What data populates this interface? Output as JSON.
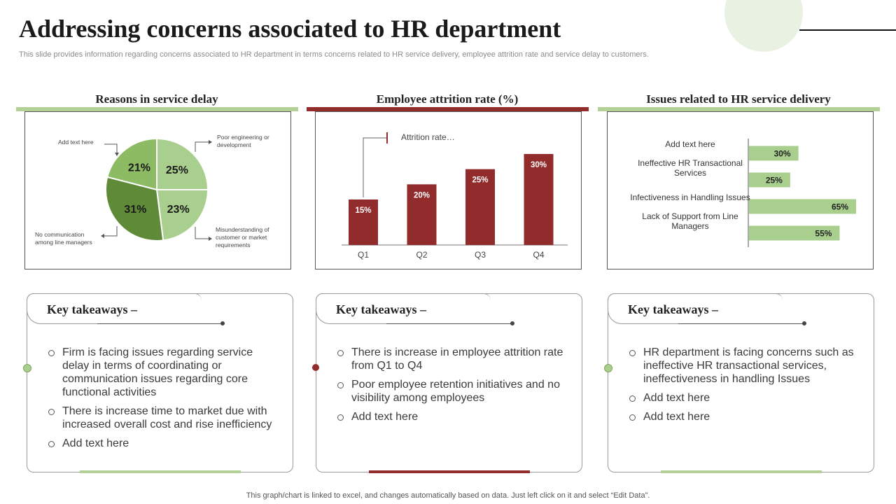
{
  "title": "Addressing concerns associated to HR department",
  "subtitle": "This slide provides information regarding concerns associated to HR department in terms concerns related to HR service delivery, employee attrition rate and service delay to customers.",
  "footnote": "This graph/chart is linked to excel, and changes automatically based on data. Just left click on it and select “Edit Data”.",
  "colors": {
    "green_light": "#a9cf8e",
    "green_mid": "#8dbb63",
    "green_dark": "#5f8b39",
    "red": "#922b2b",
    "rule_green": "#b3d197"
  },
  "panels": [
    {
      "title": "Reasons in service delay"
    },
    {
      "title": "Employee attrition rate (%)"
    },
    {
      "title": "Issues related to HR service delivery"
    }
  ],
  "chart_data": [
    {
      "type": "pie",
      "title": "Reasons in service delay",
      "slices": [
        {
          "label": "Poor engineering or development",
          "value": 25,
          "display": "25%"
        },
        {
          "label": "Misunderstanding of customer or market requirements",
          "value": 23,
          "display": "23%"
        },
        {
          "label": "No communication among line managers",
          "value": 31,
          "display": "31%"
        },
        {
          "label": "Add text here",
          "value": 21,
          "display": "21%"
        }
      ]
    },
    {
      "type": "bar",
      "title": "Employee attrition rate (%)",
      "categories": [
        "Q1",
        "Q2",
        "Q3",
        "Q4"
      ],
      "values": [
        15,
        20,
        25,
        30
      ],
      "data_labels": [
        "15%",
        "20%",
        "25%",
        "30%"
      ],
      "annotation": "Attrition rate…",
      "ylim": [
        0,
        30
      ]
    },
    {
      "type": "bar",
      "orientation": "horizontal",
      "title": "Issues related to HR service delivery",
      "categories": [
        "Add text here",
        "Ineffective HR Transactional Services",
        "Infectiveness in Handling Issues",
        "Lack of Support from Line Managers"
      ],
      "values": [
        30,
        25,
        65,
        55
      ],
      "data_labels": [
        "30%",
        "25%",
        "65%",
        "55%"
      ],
      "xlim": [
        0,
        65
      ]
    }
  ],
  "takeaways": [
    {
      "heading": "Key takeaways –",
      "items": [
        "Firm is facing issues regarding service delay in terms of coordinating or communication issues regarding core functional activities",
        "There is increase time to market due with increased overall cost and rise inefficiency",
        "Add text here"
      ]
    },
    {
      "heading": "Key takeaways –",
      "items": [
        "There is increase in employee attrition rate from Q1 to Q4",
        "Poor employee retention initiatives and no visibility among employees",
        "Add text here"
      ]
    },
    {
      "heading": "Key takeaways –",
      "items": [
        "HR department is facing concerns such as ineffective HR transactional services, ineffectiveness in handling Issues",
        "Add text here",
        "Add text here"
      ]
    }
  ]
}
